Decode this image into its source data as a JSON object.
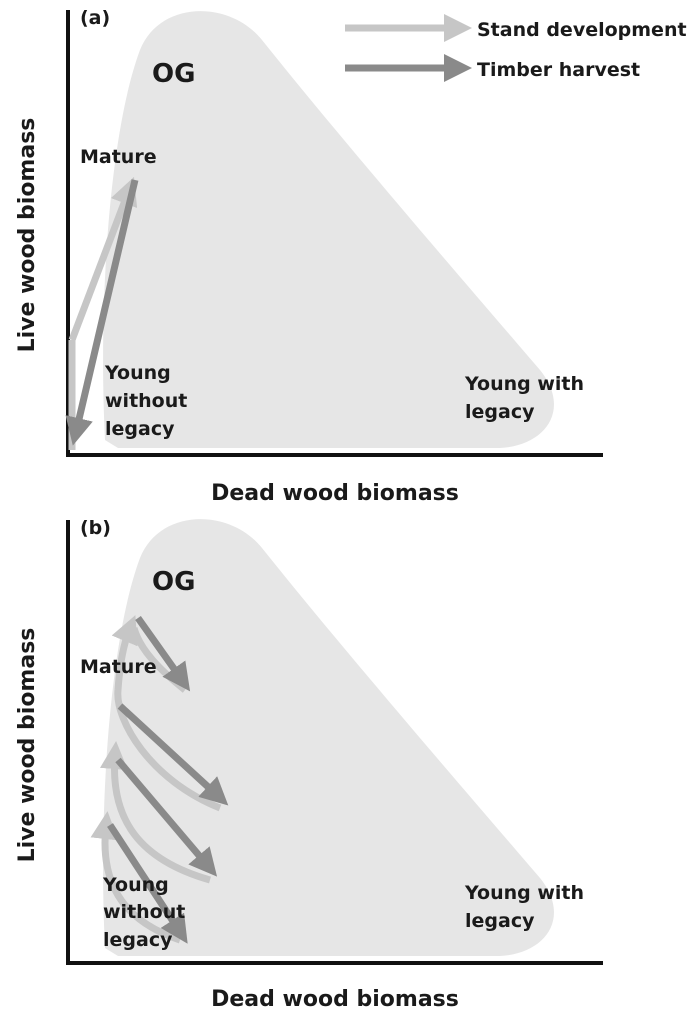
{
  "legend": [
    "Stand development",
    "Timber harvest"
  ],
  "panels": [
    {
      "label": "(a)",
      "og": "OG",
      "mature": "Mature",
      "young_without": [
        "Young",
        "without",
        "legacy"
      ],
      "young_with": [
        "Young with",
        "legacy"
      ],
      "x_label": "Dead wood biomass",
      "y_label": "Live wood biomass"
    },
    {
      "label": "(b)",
      "og": "OG",
      "mature": "Mature",
      "young_without": [
        "Young",
        "without",
        "legacy"
      ],
      "young_with": [
        "Young with",
        "legacy"
      ],
      "x_label": "Dead wood biomass",
      "y_label": "Live wood biomass"
    }
  ]
}
